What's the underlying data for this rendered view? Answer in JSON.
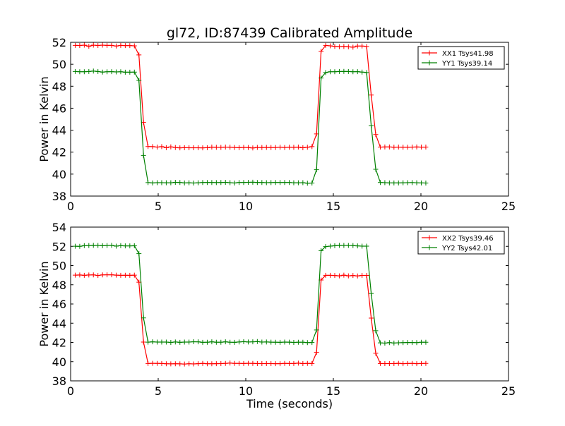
{
  "chart_data": [
    {
      "type": "line",
      "title": "gl72, ID:87439 Calibrated Amplitude",
      "xlabel": "",
      "ylabel": "Power in Kelvin",
      "xlim": [
        0,
        25
      ],
      "ylim": [
        38,
        52
      ],
      "xticks": [
        "0",
        "5",
        "10",
        "15",
        "20",
        "25"
      ],
      "yticks": [
        "38",
        "40",
        "42",
        "44",
        "46",
        "48",
        "50",
        "52"
      ],
      "legend_position": "top-right",
      "grid": false,
      "x": [
        0.26,
        0.52,
        0.78,
        1.04,
        1.3,
        1.56,
        1.82,
        2.08,
        2.34,
        2.6,
        2.86,
        3.12,
        3.38,
        3.64,
        3.9,
        4.16,
        4.42,
        4.68,
        4.94,
        5.2,
        5.46,
        5.72,
        5.98,
        6.24,
        6.5,
        6.76,
        7.02,
        7.28,
        7.54,
        7.8,
        8.06,
        8.32,
        8.58,
        8.84,
        9.1,
        9.36,
        9.62,
        9.88,
        10.14,
        10.4,
        10.66,
        10.92,
        11.18,
        11.44,
        11.7,
        11.96,
        12.22,
        12.48,
        12.74,
        13.0,
        13.26,
        13.52,
        13.78,
        14.04,
        14.3,
        14.56,
        14.82,
        15.08,
        15.34,
        15.6,
        15.86,
        16.12,
        16.38,
        16.64,
        16.9,
        17.16,
        17.42,
        17.68,
        17.94,
        18.2,
        18.46,
        18.72,
        18.98,
        19.24,
        19.5,
        19.76,
        20.02,
        20.28
      ],
      "series": [
        {
          "name": "XX1 Tsys41.98",
          "color": "#ff0000",
          "values": [
            51.72,
            51.71,
            51.74,
            51.64,
            51.74,
            51.71,
            51.74,
            51.72,
            51.72,
            51.66,
            51.72,
            51.7,
            51.7,
            51.68,
            50.85,
            44.7,
            42.51,
            42.5,
            42.46,
            42.5,
            42.41,
            42.48,
            42.42,
            42.39,
            42.41,
            42.4,
            42.4,
            42.4,
            42.39,
            42.41,
            42.46,
            42.44,
            42.43,
            42.46,
            42.45,
            42.42,
            42.41,
            42.43,
            42.42,
            42.38,
            42.43,
            42.42,
            42.43,
            42.42,
            42.42,
            42.45,
            42.42,
            42.45,
            42.44,
            42.46,
            42.4,
            42.45,
            42.5,
            43.66,
            51.18,
            51.72,
            51.68,
            51.63,
            51.6,
            51.62,
            51.59,
            51.56,
            51.66,
            51.66,
            51.62,
            47.2,
            43.6,
            42.46,
            42.47,
            42.47,
            42.45,
            42.46,
            42.45,
            42.45,
            42.46,
            42.47,
            42.46,
            42.46
          ]
        },
        {
          "name": "YY1 Tsys39.14",
          "color": "#008000",
          "values": [
            49.34,
            49.32,
            49.32,
            49.34,
            49.38,
            49.34,
            49.29,
            49.32,
            49.33,
            49.3,
            49.32,
            49.28,
            49.28,
            49.29,
            48.53,
            41.7,
            39.23,
            39.2,
            39.22,
            39.22,
            39.21,
            39.21,
            39.25,
            39.24,
            39.2,
            39.21,
            39.19,
            39.21,
            39.24,
            39.24,
            39.24,
            39.23,
            39.24,
            39.25,
            39.22,
            39.19,
            39.24,
            39.24,
            39.25,
            39.26,
            39.24,
            39.24,
            39.22,
            39.23,
            39.24,
            39.24,
            39.24,
            39.24,
            39.21,
            39.21,
            39.22,
            39.17,
            39.19,
            40.4,
            48.75,
            49.25,
            49.32,
            49.32,
            49.34,
            49.35,
            49.34,
            49.32,
            49.33,
            49.29,
            49.25,
            44.41,
            40.44,
            39.24,
            39.22,
            39.2,
            39.2,
            39.2,
            39.21,
            39.22,
            39.23,
            39.21,
            39.2,
            39.19
          ]
        }
      ]
    },
    {
      "type": "line",
      "title": "",
      "xlabel": "Time (seconds)",
      "ylabel": "Power in Kelvin",
      "xlim": [
        0,
        25
      ],
      "ylim": [
        38,
        54
      ],
      "xticks": [
        "0",
        "5",
        "10",
        "15",
        "20",
        "25"
      ],
      "yticks": [
        "38",
        "40",
        "42",
        "44",
        "46",
        "48",
        "50",
        "52",
        "54"
      ],
      "legend_position": "top-right",
      "grid": false,
      "x": [
        0.26,
        0.52,
        0.78,
        1.04,
        1.3,
        1.56,
        1.82,
        2.08,
        2.34,
        2.6,
        2.86,
        3.12,
        3.38,
        3.64,
        3.9,
        4.16,
        4.42,
        4.68,
        4.94,
        5.2,
        5.46,
        5.72,
        5.98,
        6.24,
        6.5,
        6.76,
        7.02,
        7.28,
        7.54,
        7.8,
        8.06,
        8.32,
        8.58,
        8.84,
        9.1,
        9.36,
        9.62,
        9.88,
        10.14,
        10.4,
        10.66,
        10.92,
        11.18,
        11.44,
        11.7,
        11.96,
        12.22,
        12.48,
        12.74,
        13.0,
        13.26,
        13.52,
        13.78,
        14.04,
        14.3,
        14.56,
        14.82,
        15.08,
        15.34,
        15.6,
        15.86,
        16.12,
        16.38,
        16.64,
        16.9,
        17.16,
        17.42,
        17.68,
        17.94,
        18.2,
        18.46,
        18.72,
        18.98,
        19.24,
        19.5,
        19.76,
        20.02,
        20.28
      ],
      "series": [
        {
          "name": "XX2 Tsys39.46",
          "color": "#ff0000",
          "values": [
            49.0,
            49.02,
            48.98,
            49.02,
            49.03,
            48.96,
            49.03,
            49.04,
            49.04,
            49.0,
            48.98,
            48.99,
            48.98,
            49.0,
            48.27,
            42.04,
            39.81,
            39.83,
            39.82,
            39.81,
            39.78,
            39.77,
            39.78,
            39.77,
            39.75,
            39.78,
            39.76,
            39.79,
            39.82,
            39.78,
            39.78,
            39.79,
            39.8,
            39.82,
            39.85,
            39.82,
            39.82,
            39.81,
            39.83,
            39.82,
            39.8,
            39.8,
            39.8,
            39.8,
            39.79,
            39.79,
            39.82,
            39.81,
            39.81,
            39.84,
            39.8,
            39.82,
            39.81,
            40.96,
            48.5,
            48.98,
            48.98,
            48.96,
            48.93,
            49.0,
            48.93,
            48.96,
            48.92,
            48.97,
            48.97,
            44.53,
            40.87,
            39.81,
            39.8,
            39.8,
            39.8,
            39.83,
            39.79,
            39.81,
            39.82,
            39.79,
            39.81,
            39.82
          ]
        },
        {
          "name": "YY2 Tsys42.01",
          "color": "#008000",
          "values": [
            52.01,
            52.0,
            52.07,
            52.08,
            52.1,
            52.09,
            52.06,
            52.08,
            52.1,
            52.02,
            52.07,
            52.05,
            52.05,
            52.06,
            51.24,
            44.55,
            42.03,
            42.06,
            42.04,
            42.04,
            42.04,
            42.0,
            42.05,
            42.01,
            42.04,
            42.04,
            42.07,
            42.06,
            42.01,
            42.02,
            42.06,
            42.02,
            42.02,
            42.06,
            42.02,
            42.01,
            42.05,
            42.08,
            42.05,
            42.06,
            42.09,
            42.04,
            42.05,
            42.03,
            42.02,
            42.01,
            42.04,
            42.03,
            42.0,
            42.02,
            42.02,
            41.98,
            41.99,
            43.29,
            51.55,
            51.97,
            52.02,
            52.06,
            52.1,
            52.09,
            52.09,
            52.08,
            52.05,
            52.02,
            52.02,
            47.09,
            43.22,
            41.95,
            41.93,
            41.98,
            41.94,
            41.96,
            41.98,
            41.99,
            41.99,
            41.98,
            42.02,
            42.02
          ]
        }
      ]
    }
  ]
}
